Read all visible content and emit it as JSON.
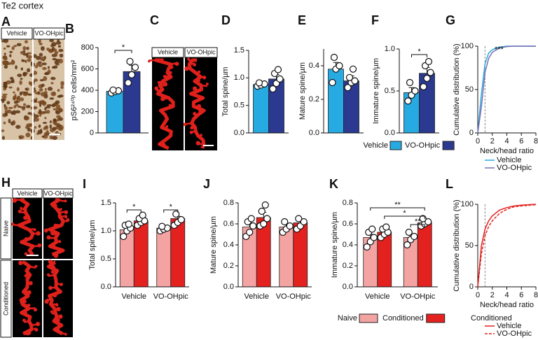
{
  "header": {
    "title": "Te2 cortex"
  },
  "image_panels": [
    {
      "panel": "A",
      "labels": [
        "Vehicle",
        "VO-OHpic"
      ]
    },
    {
      "panel": "C",
      "labels": [
        "Vehicle",
        "VO-OHpic"
      ]
    },
    {
      "panel": "H",
      "labels": [
        "Vehicle",
        "VO-OHpic"
      ],
      "rows": [
        "Naive",
        "Conditioned"
      ]
    }
  ],
  "chart_data": [
    {
      "type": "bar",
      "panel": "B",
      "ylabel": "pS6²⁴⁰ᵖ cells/mm²",
      "ylim": [
        0,
        800
      ],
      "yticks": [
        0,
        200,
        400,
        600,
        800
      ],
      "annotations": [
        "*"
      ],
      "series": [
        {
          "color": "#27aae1",
          "values": [
            390
          ],
          "errors": [
            12
          ],
          "points": [
            [
              375,
              388,
              395,
              402
            ]
          ]
        },
        {
          "color": "#2b3990",
          "values": [
            575
          ],
          "errors": [
            60
          ],
          "points": [
            [
              470,
              545,
              615,
              670
            ]
          ]
        }
      ]
    },
    {
      "type": "bar",
      "panel": "D",
      "ylabel": "Total spine/µm",
      "ylim": [
        0,
        1.5
      ],
      "yticks": [
        {
          "value": 0,
          "label": "0.0"
        },
        0.5,
        {
          "value": 1,
          "label": "1.0"
        },
        1.5
      ],
      "series": [
        {
          "color": "#27aae1",
          "values": [
            0.88
          ],
          "errors": [
            0.03
          ],
          "points": [
            [
              0.85,
              0.87,
              0.89,
              0.91
            ]
          ]
        },
        {
          "color": "#2b3990",
          "values": [
            0.98
          ],
          "errors": [
            0.08
          ],
          "points": [
            [
              0.8,
              0.9,
              0.98,
              1.08,
              1.15
            ]
          ]
        }
      ]
    },
    {
      "type": "bar",
      "panel": "E",
      "ylabel": "Mature spine/µm",
      "ylim": [
        0,
        0.5
      ],
      "yticks": [
        {
          "value": 0,
          "label": "0.0"
        },
        0.2,
        0.4
      ],
      "series": [
        {
          "color": "#27aae1",
          "values": [
            0.38
          ],
          "errors": [
            0.04
          ],
          "points": [
            [
              0.3,
              0.38,
              0.4,
              0.45
            ]
          ]
        },
        {
          "color": "#2b3990",
          "values": [
            0.31
          ],
          "errors": [
            0.03
          ],
          "points": [
            [
              0.27,
              0.3,
              0.31,
              0.33,
              0.38
            ]
          ]
        }
      ]
    },
    {
      "type": "bar",
      "panel": "F",
      "ylabel": "Immature spine/µm",
      "ylim": [
        0,
        1
      ],
      "yticks": [
        {
          "value": 0,
          "label": "0.0"
        },
        0.5,
        {
          "value": 1,
          "label": "1.0"
        }
      ],
      "annotations": [
        "*"
      ],
      "series": [
        {
          "name": "Vehicle",
          "color": "#27aae1",
          "values": [
            0.48
          ],
          "errors": [
            0.06
          ],
          "points": [
            [
              0.38,
              0.45,
              0.5,
              0.6
            ]
          ]
        },
        {
          "name": "VO-OHpic",
          "color": "#2b3990",
          "values": [
            0.71
          ],
          "errors": [
            0.07
          ],
          "points": [
            [
              0.55,
              0.65,
              0.72,
              0.8,
              0.85
            ]
          ]
        }
      ]
    },
    {
      "type": "line",
      "panel": "G",
      "ylabel": "Cumulative distribution (%)",
      "xlabel": "Neck/head ratio",
      "xlim": [
        0,
        8
      ],
      "ylim": [
        0,
        100
      ],
      "xticks": [
        0,
        2,
        4,
        6,
        8
      ],
      "yticks": [
        0,
        50,
        100
      ],
      "vline": 1,
      "annotations": [
        "***"
      ],
      "x": [
        0,
        0.5,
        1,
        1.5,
        2,
        3,
        4,
        5,
        6,
        8
      ],
      "series": [
        {
          "name": "Vehicle",
          "color": "#27aae1",
          "dash": false,
          "values": [
            0,
            45,
            80,
            92,
            96,
            99,
            100,
            100,
            100,
            100
          ]
        },
        {
          "name": "VO-OHpic",
          "color": "#7b6fb0",
          "dash": false,
          "values": [
            0,
            30,
            70,
            86,
            93,
            98,
            99.5,
            100,
            100,
            100
          ]
        }
      ]
    },
    {
      "type": "bar",
      "panel": "I",
      "ylabel": "Total spine/µm",
      "ylim": [
        0,
        1.5
      ],
      "yticks": [
        {
          "value": 0,
          "label": "0.0"
        },
        0.5,
        {
          "value": 1,
          "label": "1.0"
        },
        1.5
      ],
      "categories": [
        "Vehicle",
        "VO-OHpic"
      ],
      "annotations": [
        "*",
        "*"
      ],
      "series": [
        {
          "color": "#f4a3a3",
          "values": [
            1.02,
            1.05
          ],
          "errors": [
            0.05,
            0.03
          ],
          "points": [
            [
              0.9,
              1.0,
              1.05,
              1.1,
              1.12
            ],
            [
              1.0,
              1.03,
              1.05,
              1.08
            ]
          ]
        },
        {
          "color": "#e3211f",
          "values": [
            1.18,
            1.22
          ],
          "errors": [
            0.04,
            0.04
          ],
          "points": [
            [
              1.1,
              1.15,
              1.18,
              1.22,
              1.28
            ],
            [
              1.1,
              1.15,
              1.2,
              1.3
            ]
          ]
        }
      ]
    },
    {
      "type": "bar",
      "panel": "J",
      "ylabel": "Mature spine/µm",
      "ylim": [
        0,
        0.8
      ],
      "yticks": [
        {
          "value": 0,
          "label": "0.0"
        },
        0.2,
        0.4,
        0.6,
        0.8
      ],
      "categories": [
        "Vehicle",
        "VO-OHpic"
      ],
      "series": [
        {
          "color": "#f4a3a3",
          "values": [
            0.57,
            0.57
          ],
          "errors": [
            0.04,
            0.03
          ],
          "points": [
            [
              0.48,
              0.52,
              0.58,
              0.62,
              0.65
            ],
            [
              0.52,
              0.55,
              0.58,
              0.62
            ]
          ]
        },
        {
          "color": "#e3211f",
          "values": [
            0.66,
            0.61
          ],
          "errors": [
            0.05,
            0.03
          ],
          "points": [
            [
              0.58,
              0.6,
              0.65,
              0.72,
              0.78
            ],
            [
              0.55,
              0.58,
              0.62,
              0.65
            ]
          ]
        }
      ]
    },
    {
      "type": "bar",
      "panel": "K",
      "ylabel": "Immature spine/µm",
      "ylim": [
        0,
        0.8
      ],
      "yticks": [
        {
          "value": 0,
          "label": "0.0"
        },
        0.2,
        0.4,
        0.6,
        0.8
      ],
      "categories": [
        "Vehicle",
        "VO-OHpic"
      ],
      "annotations": [
        "**",
        "*",
        "**"
      ],
      "series": [
        {
          "name": "Naive",
          "color": "#f4a3a3",
          "values": [
            0.47,
            0.47
          ],
          "errors": [
            0.03,
            0.03
          ],
          "points": [
            [
              0.38,
              0.43,
              0.47,
              0.52,
              0.55
            ],
            [
              0.4,
              0.45,
              0.48,
              0.52
            ]
          ]
        },
        {
          "name": "Conditioned",
          "color": "#e3211f",
          "values": [
            0.52,
            0.61
          ],
          "errors": [
            0.02,
            0.02
          ],
          "points": [
            [
              0.47,
              0.5,
              0.52,
              0.55,
              0.57
            ],
            [
              0.58,
              0.6,
              0.62,
              0.65
            ]
          ]
        }
      ]
    },
    {
      "type": "line",
      "panel": "L",
      "ylabel": "Cumulative distribution (%)",
      "xlabel": "Neck/head ratio",
      "xlim": [
        0,
        8
      ],
      "ylim": [
        0,
        100
      ],
      "xticks": [
        0,
        2,
        4,
        6,
        8
      ],
      "yticks": [
        0,
        50,
        100
      ],
      "vline": 1,
      "legend_title": "Conditioned",
      "x": [
        0,
        0.5,
        1,
        1.5,
        2,
        3,
        4,
        5,
        6,
        8
      ],
      "series": [
        {
          "name": "Vehicle",
          "color": "#e3211f",
          "dash": false,
          "values": [
            0,
            50,
            70,
            80,
            86,
            93,
            96,
            98,
            99,
            100
          ]
        },
        {
          "name": "VO-OHpic",
          "color": "#e3211f",
          "dash": true,
          "values": [
            0,
            40,
            62,
            73,
            80,
            89,
            94,
            97,
            98,
            99.5
          ]
        }
      ]
    }
  ]
}
